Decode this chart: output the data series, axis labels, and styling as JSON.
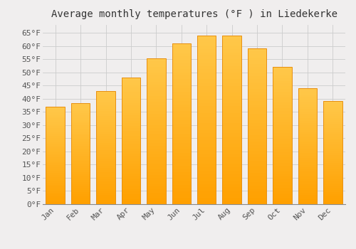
{
  "title": "Average monthly temperatures (°F ) in Liedekerke",
  "months": [
    "Jan",
    "Feb",
    "Mar",
    "Apr",
    "May",
    "Jun",
    "Jul",
    "Aug",
    "Sep",
    "Oct",
    "Nov",
    "Dec"
  ],
  "values": [
    37.0,
    38.3,
    43.0,
    48.0,
    55.4,
    61.0,
    64.0,
    64.0,
    59.2,
    52.0,
    44.0,
    39.0
  ],
  "bar_color_top": "#FFC84A",
  "bar_color_bottom": "#FFA000",
  "bar_edge_color": "#E89010",
  "ylim": [
    0,
    68
  ],
  "yticks": [
    0,
    5,
    10,
    15,
    20,
    25,
    30,
    35,
    40,
    45,
    50,
    55,
    60,
    65
  ],
  "background_color": "#f0eeee",
  "grid_color": "#cccccc",
  "title_fontsize": 10,
  "tick_fontsize": 8,
  "bar_width": 0.75
}
